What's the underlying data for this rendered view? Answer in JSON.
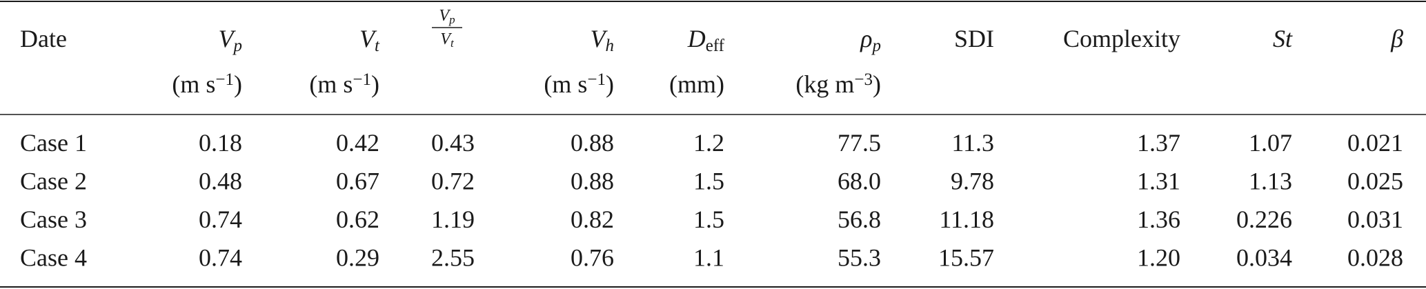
{
  "table": {
    "columns": [
      {
        "name": "Date"
      },
      {
        "name": "V",
        "sub": "p",
        "unit": "(m s",
        "sup": "−1",
        "close": ")"
      },
      {
        "name": "V",
        "sub": "t",
        "unit": "(m s",
        "sup": "−1",
        "close": ")"
      },
      {
        "num": "V",
        "num_sub": "p",
        "den": "V",
        "den_sub": "t"
      },
      {
        "name": "V",
        "sub": "h",
        "unit": "(m s",
        "sup": "−1",
        "close": ")"
      },
      {
        "name": "D",
        "sub": "eff",
        "unit": "(mm)"
      },
      {
        "name": "ρ",
        "sub": "p",
        "unit": "(kg m",
        "sup": "−3",
        "close": ")"
      },
      {
        "name": "SDI"
      },
      {
        "name": "Complexity"
      },
      {
        "name": "St"
      },
      {
        "name": "β"
      }
    ],
    "rows": [
      [
        "Case 1",
        "0.18",
        "0.42",
        "0.43",
        "0.88",
        "1.2",
        "77.5",
        "11.3",
        "1.37",
        "1.07",
        "0.021"
      ],
      [
        "Case 2",
        "0.48",
        "0.67",
        "0.72",
        "0.88",
        "1.5",
        "68.0",
        "9.78",
        "1.31",
        "1.13",
        "0.025"
      ],
      [
        "Case 3",
        "0.74",
        "0.62",
        "1.19",
        "0.82",
        "1.5",
        "56.8",
        "11.18",
        "1.36",
        "0.226",
        "0.031"
      ],
      [
        "Case 4",
        "0.74",
        "0.29",
        "2.55",
        "0.76",
        "1.1",
        "55.3",
        "15.57",
        "1.20",
        "0.034",
        "0.028"
      ]
    ]
  }
}
